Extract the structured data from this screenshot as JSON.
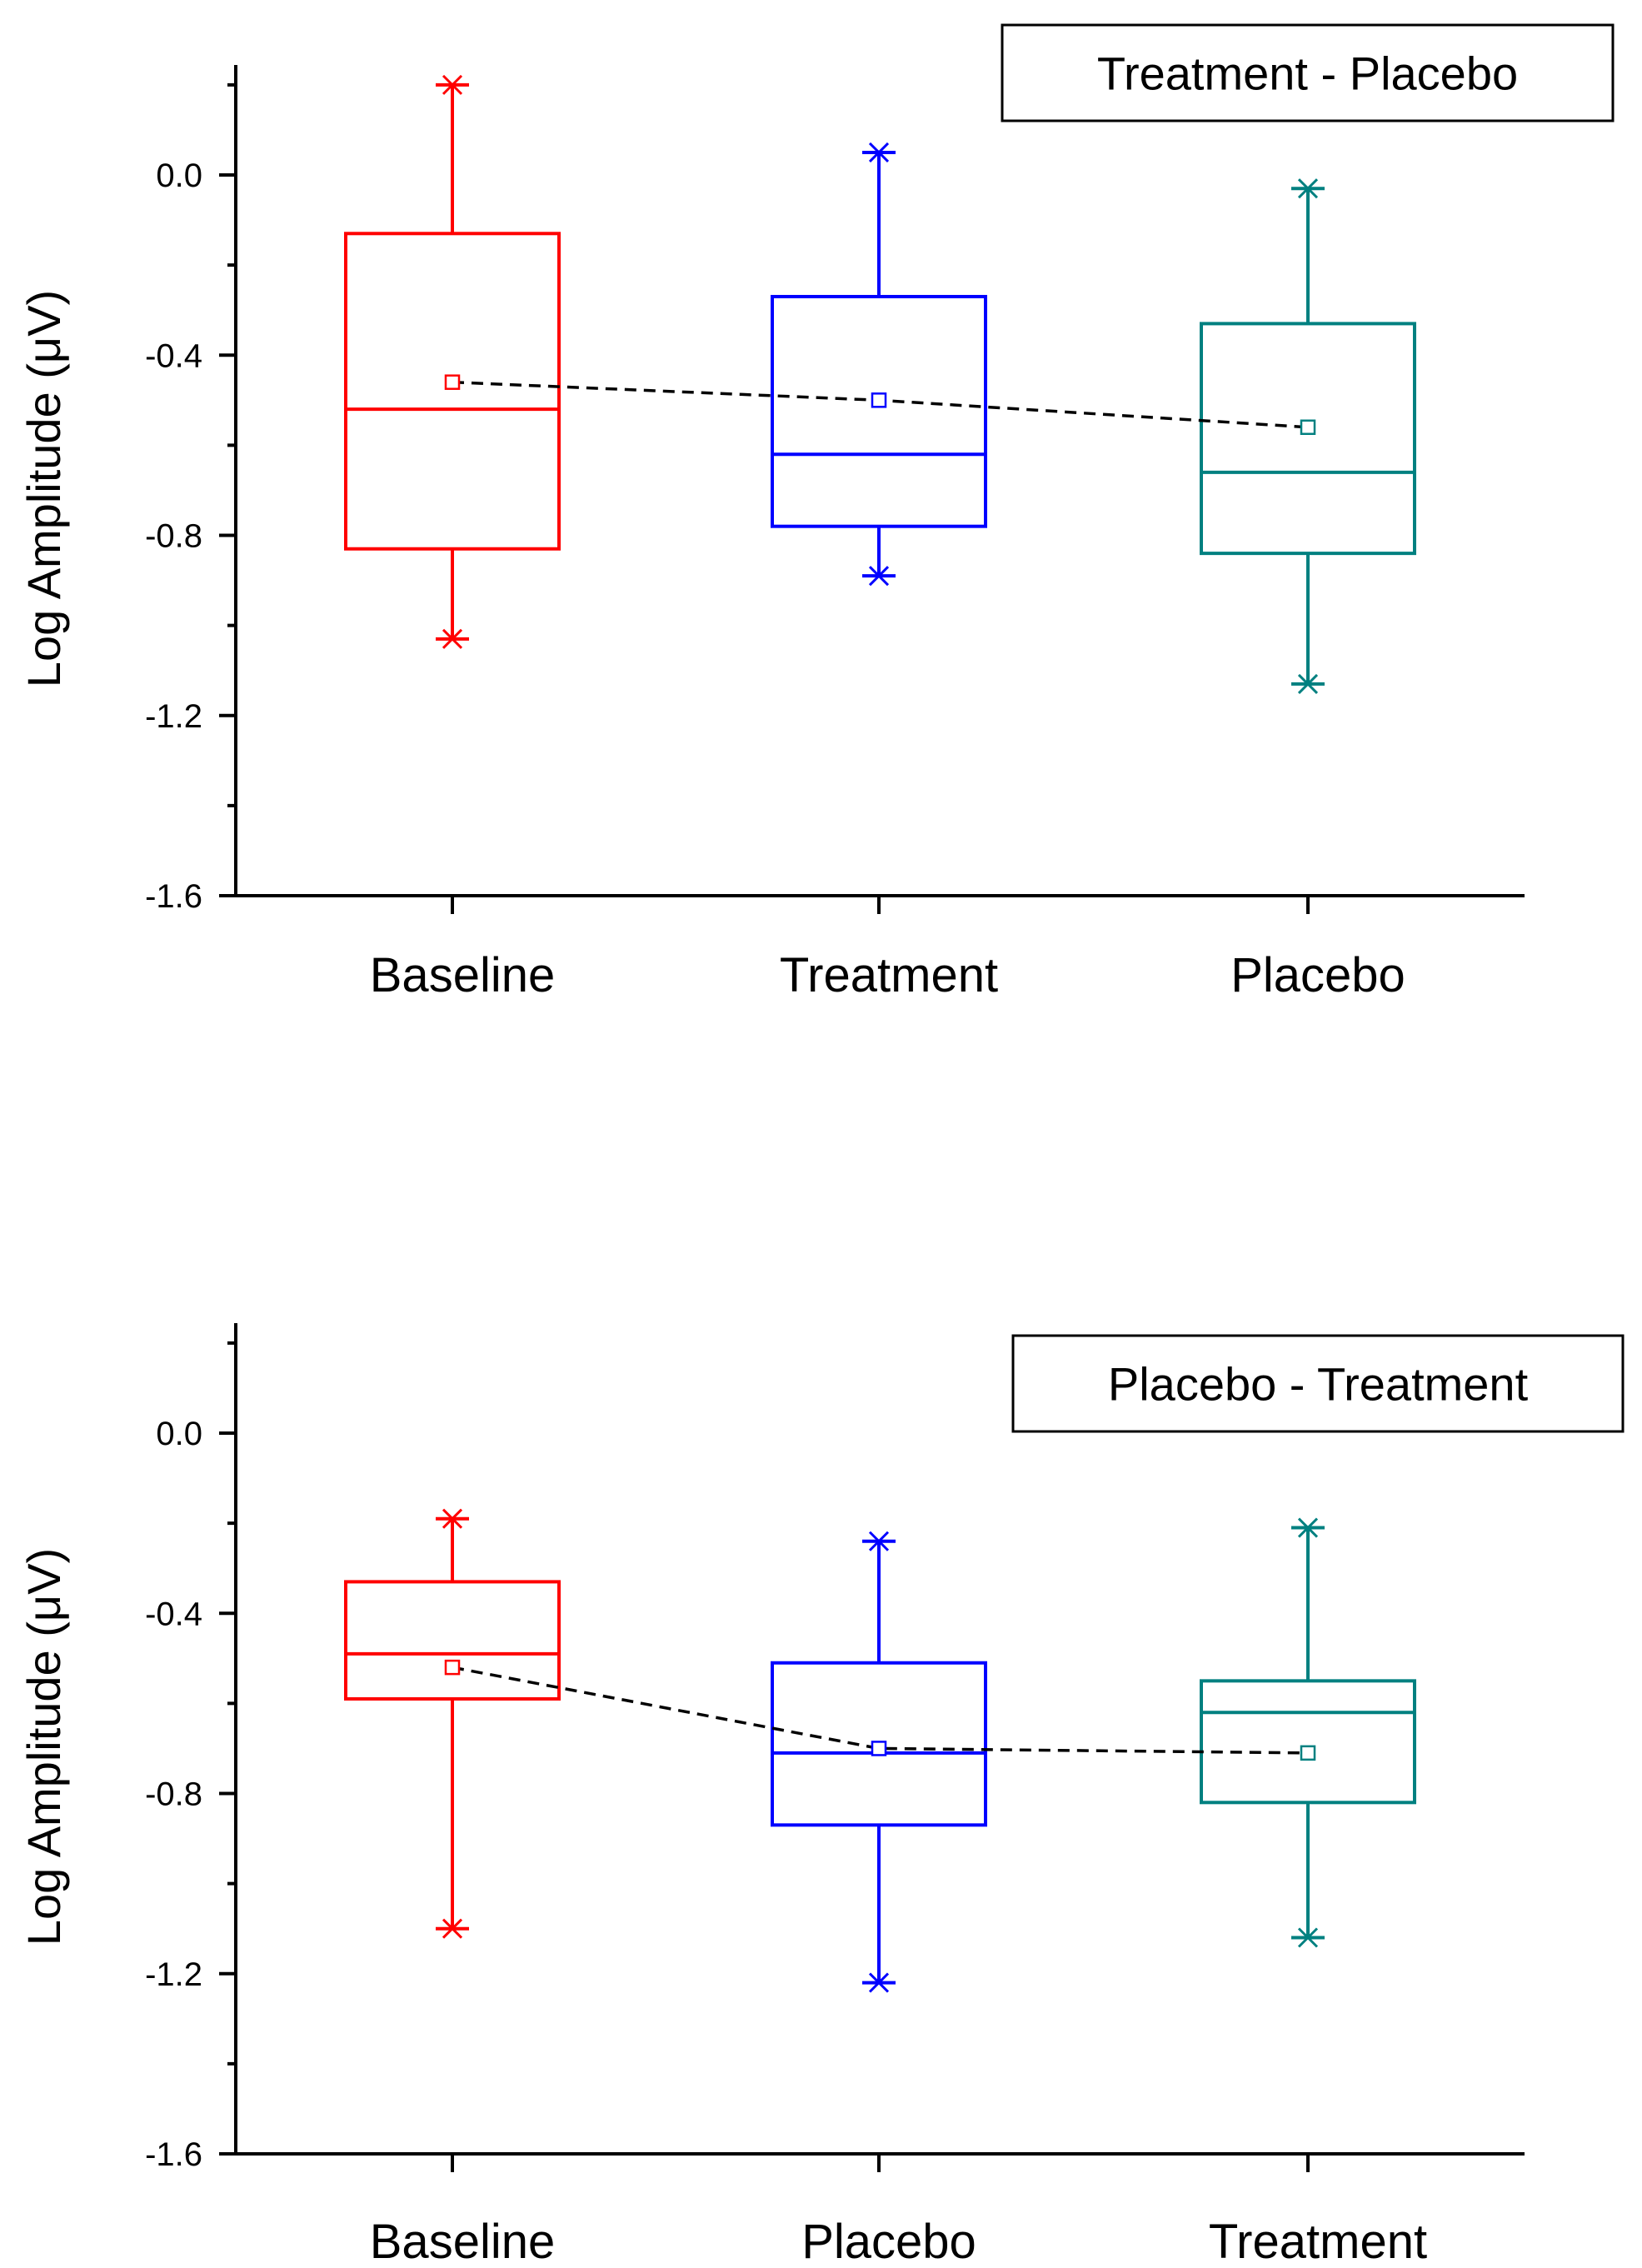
{
  "chart_data": [
    {
      "type": "box",
      "legend": "Treatment - Placebo",
      "legend_position": "top-right",
      "ylabel": "Log Amplitude (μV)",
      "ylim": [
        -1.6,
        0.25
      ],
      "yticks": [
        "0.0",
        "-0.4",
        "-0.8",
        "-1.2",
        "-1.6"
      ],
      "categories": [
        "Baseline",
        "Treatment",
        "Placebo"
      ],
      "series": [
        {
          "name": "Baseline",
          "color": "#ff0000",
          "whisker_high": 0.2,
          "q3": -0.13,
          "median": -0.52,
          "q1": -0.83,
          "whisker_low": -1.03,
          "mean": -0.46
        },
        {
          "name": "Treatment",
          "color": "#0000ff",
          "whisker_high": 0.05,
          "q3": -0.27,
          "median": -0.62,
          "q1": -0.78,
          "whisker_low": -0.89,
          "mean": -0.5
        },
        {
          "name": "Placebo",
          "color": "#008080",
          "whisker_high": -0.03,
          "q3": -0.33,
          "median": -0.66,
          "q1": -0.84,
          "whisker_low": -1.13,
          "mean": -0.56
        }
      ]
    },
    {
      "type": "box",
      "legend": "Placebo - Treatment",
      "legend_position": "top-right",
      "ylabel": "Log Amplitude (μV)",
      "ylim": [
        -1.6,
        0.25
      ],
      "yticks": [
        "0.0",
        "-0.4",
        "-0.8",
        "-1.2",
        "-1.6"
      ],
      "categories": [
        "Baseline",
        "Placebo",
        "Treatment"
      ],
      "series": [
        {
          "name": "Baseline",
          "color": "#ff0000",
          "whisker_high": -0.19,
          "q3": -0.33,
          "median": -0.49,
          "q1": -0.59,
          "whisker_low": -1.1,
          "mean": -0.52
        },
        {
          "name": "Placebo",
          "color": "#0000ff",
          "whisker_high": -0.24,
          "q3": -0.51,
          "median": -0.71,
          "q1": -0.87,
          "whisker_low": -1.22,
          "mean": -0.7
        },
        {
          "name": "Treatment",
          "color": "#008080",
          "whisker_high": -0.21,
          "q3": -0.55,
          "median": -0.62,
          "q1": -0.82,
          "whisker_low": -1.12,
          "mean": -0.71
        }
      ]
    }
  ]
}
